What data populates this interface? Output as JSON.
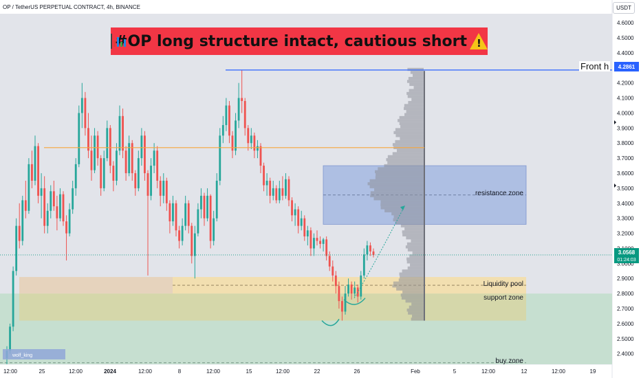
{
  "header": {
    "symbol": "OP / TetherUS PERPETUAL CONTRACT, 4h, BINANCE",
    "currency": "USDT"
  },
  "title": {
    "text": "#OP long structure intact, cautious short",
    "left_icon": "bar-chart-icon",
    "right_icon": "warning-icon"
  },
  "annotations": {
    "front_label": "Front h",
    "resistance": "resistance zone",
    "liquidity": "Liquidity pool",
    "support": "support zone",
    "buy": "buy zone",
    "watermark": "wolf_king"
  },
  "price_tags": {
    "high": "4.2861",
    "current": "3.0568",
    "countdown": "01:24:03"
  },
  "colors": {
    "up_candle": "#26a69a",
    "down_candle": "#ef5350",
    "background_shade": "#e2e4ea",
    "resistance_fill": "#aebfe3",
    "liquidity_fill": "#f2dfb0",
    "support_fill": "#d6d6a8",
    "buy_fill": "#c6dfd0",
    "level_line_orange": "#f7a53b",
    "level_line_blue": "#2962ff",
    "current_price": "#089981",
    "title_banner": "#f23645"
  },
  "chart_data": {
    "type": "candlestick",
    "y_axis_ticks": [
      "4.6000",
      "4.5000",
      "4.4000",
      "4.3000",
      "4.2000",
      "4.1000",
      "4.0000",
      "3.9000",
      "3.8000",
      "3.7000",
      "3.6000",
      "3.5000",
      "3.4000",
      "3.3000",
      "3.2000",
      "3.1000",
      "3.0000",
      "2.9000",
      "2.8000",
      "2.7000",
      "2.6000",
      "2.5000",
      "2.4000"
    ],
    "x_axis_ticks": [
      "12:00",
      "25",
      "12:00",
      "2024",
      "12:00",
      "8",
      "12:00",
      "15",
      "12:00",
      "22",
      "26",
      "Feb",
      "5",
      "12:00",
      "12",
      "12:00",
      "19"
    ],
    "ylim": [
      2.33,
      4.66
    ],
    "levels": {
      "front_high": 4.2861,
      "orange_line": 3.77,
      "current": 3.0568
    },
    "zones": {
      "resistance": [
        3.26,
        3.65
      ],
      "liquidity_pool": [
        2.8,
        2.91
      ],
      "support": [
        2.62,
        2.8
      ],
      "buy": [
        2.33,
        2.8
      ]
    },
    "volume_profile_poc": 3.5,
    "projection": {
      "from": 2.77,
      "to": 3.38
    },
    "series": [
      {
        "candles": [
          [
            2.37,
            2.45,
            2.33,
            2.42
          ],
          [
            2.42,
            2.6,
            2.4,
            2.58
          ],
          [
            2.58,
            2.98,
            2.55,
            2.95
          ],
          [
            2.95,
            3.3,
            2.92,
            3.25
          ],
          [
            3.25,
            3.4,
            3.1,
            3.15
          ],
          [
            3.15,
            3.45,
            3.12,
            3.42
          ],
          [
            3.42,
            3.55,
            3.3,
            3.35
          ],
          [
            3.35,
            3.7,
            3.33,
            3.66
          ],
          [
            3.66,
            3.75,
            3.5,
            3.55
          ],
          [
            3.55,
            3.85,
            3.52,
            3.78
          ],
          [
            3.78,
            3.8,
            3.4,
            3.45
          ],
          [
            3.45,
            3.6,
            3.3,
            3.5
          ],
          [
            3.5,
            3.58,
            3.2,
            3.25
          ],
          [
            3.25,
            3.4,
            3.2,
            3.35
          ],
          [
            3.35,
            3.52,
            3.3,
            3.48
          ],
          [
            3.48,
            3.55,
            3.35,
            3.38
          ],
          [
            3.38,
            3.45,
            3.22,
            3.3
          ],
          [
            3.3,
            3.5,
            3.28,
            3.46
          ],
          [
            3.46,
            3.48,
            3.25,
            3.28
          ],
          [
            3.28,
            3.32,
            3.02,
            3.2
          ],
          [
            3.2,
            3.4,
            3.18,
            3.36
          ],
          [
            3.36,
            3.55,
            3.33,
            3.5
          ],
          [
            3.5,
            3.7,
            3.45,
            3.66
          ],
          [
            3.66,
            4.05,
            3.64,
            4.0
          ],
          [
            4.0,
            4.2,
            3.9,
            4.1
          ],
          [
            4.1,
            4.14,
            3.85,
            3.9
          ],
          [
            3.9,
            4.0,
            3.7,
            3.75
          ],
          [
            3.75,
            3.85,
            3.55,
            3.62
          ],
          [
            3.62,
            3.9,
            3.6,
            3.85
          ],
          [
            3.85,
            3.88,
            3.65,
            3.7
          ],
          [
            3.7,
            3.72,
            3.45,
            3.5
          ],
          [
            3.5,
            3.75,
            3.48,
            3.7
          ],
          [
            3.7,
            3.95,
            3.68,
            3.9
          ],
          [
            3.9,
            3.92,
            3.6,
            3.65
          ],
          [
            3.65,
            3.68,
            3.48,
            3.55
          ],
          [
            3.55,
            3.8,
            3.52,
            3.75
          ],
          [
            3.75,
            4.05,
            3.72,
            3.98
          ],
          [
            3.98,
            4.03,
            3.7,
            3.75
          ],
          [
            3.75,
            3.78,
            3.55,
            3.6
          ],
          [
            3.6,
            3.85,
            3.58,
            3.8
          ],
          [
            3.8,
            3.82,
            3.55,
            3.6
          ],
          [
            3.6,
            3.62,
            3.45,
            3.5
          ],
          [
            3.5,
            3.75,
            3.48,
            3.7
          ],
          [
            3.7,
            3.9,
            3.65,
            3.85
          ],
          [
            3.85,
            3.88,
            3.55,
            3.6
          ],
          [
            3.6,
            3.62,
            2.92,
            3.45
          ],
          [
            3.45,
            3.7,
            3.42,
            3.65
          ],
          [
            3.65,
            3.8,
            3.6,
            3.75
          ],
          [
            3.75,
            3.78,
            3.5,
            3.55
          ],
          [
            3.55,
            3.58,
            3.38,
            3.45
          ],
          [
            3.45,
            3.6,
            3.4,
            3.55
          ],
          [
            3.55,
            3.57,
            3.35,
            3.4
          ],
          [
            3.4,
            3.42,
            3.2,
            3.28
          ],
          [
            3.28,
            3.45,
            3.25,
            3.4
          ],
          [
            3.4,
            3.42,
            3.18,
            3.22
          ],
          [
            3.22,
            3.25,
            3.1,
            3.15
          ],
          [
            3.15,
            3.3,
            3.12,
            3.25
          ],
          [
            3.25,
            3.45,
            3.22,
            3.4
          ],
          [
            3.4,
            3.42,
            3.2,
            3.25
          ],
          [
            3.25,
            3.27,
            3.0,
            3.05
          ],
          [
            3.05,
            3.25,
            2.9,
            3.2
          ],
          [
            3.2,
            3.4,
            3.18,
            3.36
          ],
          [
            3.36,
            3.5,
            3.3,
            3.45
          ],
          [
            3.45,
            3.47,
            3.25,
            3.3
          ],
          [
            3.3,
            3.5,
            3.28,
            3.45
          ],
          [
            3.45,
            3.46,
            3.1,
            3.15
          ],
          [
            3.15,
            3.35,
            3.12,
            3.3
          ],
          [
            3.3,
            3.6,
            3.28,
            3.55
          ],
          [
            3.55,
            3.9,
            3.52,
            3.85
          ],
          [
            3.85,
            3.98,
            3.8,
            3.92
          ],
          [
            3.92,
            4.1,
            3.88,
            4.05
          ],
          [
            4.05,
            4.08,
            3.8,
            3.85
          ],
          [
            3.85,
            3.88,
            3.7,
            3.75
          ],
          [
            3.75,
            4.0,
            3.72,
            3.95
          ],
          [
            3.95,
            4.2,
            3.9,
            4.1
          ],
          [
            4.1,
            4.2861,
            4.0,
            4.08
          ],
          [
            4.08,
            4.1,
            3.85,
            3.9
          ],
          [
            3.9,
            3.92,
            3.75,
            3.8
          ],
          [
            3.8,
            3.9,
            3.76,
            3.85
          ],
          [
            3.85,
            3.87,
            3.7,
            3.75
          ],
          [
            3.75,
            3.82,
            3.7,
            3.78
          ],
          [
            3.78,
            3.8,
            3.6,
            3.65
          ],
          [
            3.65,
            3.67,
            3.48,
            3.52
          ],
          [
            3.52,
            3.6,
            3.45,
            3.55
          ],
          [
            3.55,
            3.57,
            3.4,
            3.45
          ],
          [
            3.45,
            3.55,
            3.42,
            3.5
          ],
          [
            3.5,
            3.52,
            3.4,
            3.42
          ],
          [
            3.42,
            3.55,
            3.4,
            3.5
          ],
          [
            3.5,
            3.58,
            3.42,
            3.45
          ],
          [
            3.45,
            3.6,
            3.43,
            3.56
          ],
          [
            3.56,
            3.58,
            3.38,
            3.42
          ],
          [
            3.42,
            3.44,
            3.28,
            3.32
          ],
          [
            3.32,
            3.4,
            3.25,
            3.36
          ],
          [
            3.36,
            3.38,
            3.2,
            3.25
          ],
          [
            3.25,
            3.35,
            3.22,
            3.3
          ],
          [
            3.3,
            3.32,
            3.15,
            3.18
          ],
          [
            3.18,
            3.25,
            3.12,
            3.22
          ],
          [
            3.22,
            3.24,
            3.05,
            3.1
          ],
          [
            3.1,
            3.2,
            3.05,
            3.17
          ],
          [
            3.17,
            3.22,
            3.12,
            3.15
          ],
          [
            3.15,
            3.18,
            3.1,
            3.13
          ],
          [
            3.13,
            3.17,
            3.08,
            3.16
          ],
          [
            3.16,
            3.18,
            3.02,
            3.05
          ],
          [
            3.05,
            3.08,
            2.95,
            2.98
          ],
          [
            2.98,
            3.02,
            2.88,
            2.92
          ],
          [
            2.92,
            2.95,
            2.8,
            2.85
          ],
          [
            2.85,
            2.88,
            2.7,
            2.75
          ],
          [
            2.75,
            2.78,
            2.62,
            2.68
          ],
          [
            2.68,
            2.85,
            2.66,
            2.8
          ],
          [
            2.8,
            2.9,
            2.78,
            2.86
          ],
          [
            2.86,
            2.88,
            2.76,
            2.8
          ],
          [
            2.8,
            2.88,
            2.78,
            2.84
          ],
          [
            2.84,
            2.86,
            2.74,
            2.78
          ],
          [
            2.78,
            2.95,
            2.76,
            2.92
          ],
          [
            2.92,
            3.1,
            2.9,
            3.06
          ],
          [
            3.06,
            3.15,
            3.02,
            3.12
          ],
          [
            3.12,
            3.14,
            3.05,
            3.08
          ],
          [
            3.08,
            3.1,
            3.04,
            3.0568
          ]
        ]
      }
    ]
  }
}
